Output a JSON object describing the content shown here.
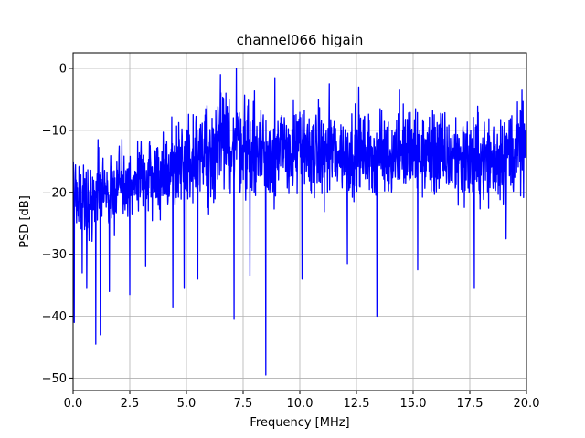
{
  "chart_data": {
    "type": "line",
    "title": "channel066 higain",
    "xlabel": "Frequency [MHz]",
    "ylabel": "PSD [dB]",
    "xlim": [
      0,
      20
    ],
    "ylim": [
      -52,
      2.5
    ],
    "x_ticks": [
      0,
      2.5,
      5,
      7.5,
      10,
      12.5,
      15,
      17.5,
      20
    ],
    "x_tick_labels": [
      "0.0",
      "2.5",
      "5.0",
      "7.5",
      "10.0",
      "12.5",
      "15.0",
      "17.5",
      "20.0"
    ],
    "y_ticks": [
      0,
      -10,
      -20,
      -30,
      -40,
      -50
    ],
    "y_tick_labels": [
      "0",
      "−10",
      "−20",
      "−30",
      "−40",
      "−50"
    ],
    "grid": true,
    "series": [
      {
        "color": "#0000ff",
        "envelope": {
          "x": [
            0,
            0.5,
            1.0,
            1.5,
            2.0,
            2.5,
            3.0,
            3.5,
            4.0,
            4.5,
            5.0,
            5.5,
            6.0,
            6.5,
            7.0,
            7.5,
            8.0,
            8.5,
            9.0,
            9.5,
            10.0,
            10.5,
            11.0,
            11.5,
            12.0,
            12.5,
            13.0,
            13.5,
            14.0,
            14.5,
            15.0,
            15.5,
            16.0,
            16.5,
            17.0,
            17.5,
            18.0,
            18.5,
            19.0,
            19.5,
            20.0
          ],
          "upper": [
            -14,
            -12,
            -13,
            -13,
            -11,
            -12,
            -10,
            -9,
            -8,
            -7,
            -6,
            -4,
            -4,
            -3,
            -2,
            -2,
            -3,
            -4,
            -4,
            -5,
            -4,
            -5,
            -5,
            -4,
            -6,
            -5,
            -6,
            -5,
            -6,
            -4,
            -5,
            -5,
            -4,
            -6,
            -5,
            -6,
            -5,
            -6,
            -4,
            -5,
            -4
          ],
          "lower": [
            -26,
            -28,
            -30,
            -28,
            -27,
            -26,
            -27,
            -26,
            -25,
            -24,
            -24,
            -23,
            -23,
            -22,
            -22,
            -22,
            -23,
            -23,
            -23,
            -22,
            -22,
            -22,
            -23,
            -22,
            -22,
            -22,
            -22,
            -22,
            -22,
            -22,
            -22,
            -23,
            -23,
            -23,
            -23,
            -24,
            -24,
            -24,
            -23,
            -22,
            -22
          ]
        },
        "spikes_up": [
          {
            "x": 7.2,
            "y": 0
          },
          {
            "x": 6.5,
            "y": -1
          },
          {
            "x": 8.9,
            "y": -1.5
          },
          {
            "x": 11.3,
            "y": -2.5
          },
          {
            "x": 12.6,
            "y": -3
          },
          {
            "x": 14.4,
            "y": -3.5
          },
          {
            "x": 19.8,
            "y": -3.5
          },
          {
            "x": 0.4,
            "y": -9
          },
          {
            "x": 1.1,
            "y": -11.5
          }
        ],
        "spikes_down": [
          {
            "x": 0.05,
            "y": -41
          },
          {
            "x": 0.4,
            "y": -33
          },
          {
            "x": 0.6,
            "y": -35.5
          },
          {
            "x": 1.0,
            "y": -44.5
          },
          {
            "x": 1.2,
            "y": -43
          },
          {
            "x": 1.6,
            "y": -36
          },
          {
            "x": 2.5,
            "y": -36.5
          },
          {
            "x": 3.2,
            "y": -32
          },
          {
            "x": 4.4,
            "y": -38.5
          },
          {
            "x": 4.9,
            "y": -35.5
          },
          {
            "x": 5.5,
            "y": -34
          },
          {
            "x": 7.1,
            "y": -40.5
          },
          {
            "x": 7.8,
            "y": -33.5
          },
          {
            "x": 8.5,
            "y": -49.5
          },
          {
            "x": 10.1,
            "y": -34
          },
          {
            "x": 12.1,
            "y": -31.5
          },
          {
            "x": 13.4,
            "y": -40
          },
          {
            "x": 15.2,
            "y": -32.5
          },
          {
            "x": 17.7,
            "y": -35.5
          },
          {
            "x": 19.1,
            "y": -27.5
          }
        ]
      }
    ]
  }
}
